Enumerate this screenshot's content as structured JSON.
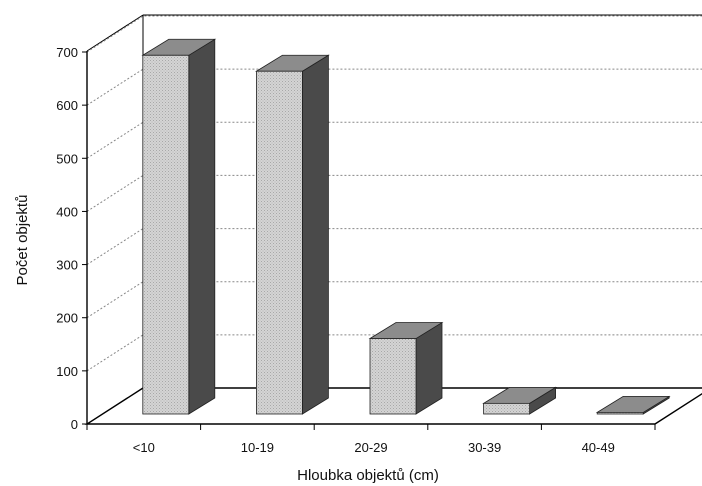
{
  "chart_data": {
    "type": "bar",
    "style": "3d",
    "categories": [
      "<10",
      "10-19",
      "20-29",
      "30-39",
      "40-49"
    ],
    "values": [
      675,
      645,
      142,
      20,
      3
    ],
    "xlabel": "Hloubka objektů (cm)",
    "ylabel": "Počet objektů",
    "ylim": [
      0,
      700
    ],
    "yticks": [
      "0",
      "100",
      "200",
      "300",
      "400",
      "500",
      "600",
      "700"
    ],
    "grid": true,
    "legend": "none",
    "colors": {
      "bar_front": "#d2d2d2",
      "bar_side": "#4a4a4a",
      "bar_top": "#8c8c8c",
      "axis": "#000000",
      "grid": "#888888"
    }
  }
}
